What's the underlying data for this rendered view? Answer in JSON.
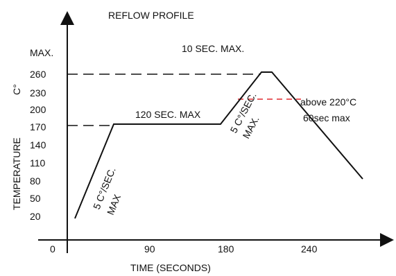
{
  "title": "REFLOW PROFILE",
  "y_axis": {
    "label": "TEMPERATURE",
    "unit": "C°",
    "max_label": "MAX.",
    "ticks": [
      "260",
      "230",
      "200",
      "170",
      "140",
      "110",
      "80",
      "50",
      "20"
    ]
  },
  "x_axis": {
    "label": "TIME (SECONDS)",
    "ticks": [
      "0",
      "90",
      "180",
      "240"
    ]
  },
  "annotations": {
    "peak": "10 SEC. MAX.",
    "soak": "120 SEC. MAX",
    "above_liquidus_line1": "above 220°C",
    "above_liquidus_line2": "60sec max",
    "ramp1_line1": "5 C°/SEC.",
    "ramp1_line2": "MAX",
    "ramp2_line1": "5 C°/SEC.",
    "ramp2_line2": "MAX."
  },
  "colors": {
    "line": "#111111",
    "liquidus": "#e0282e"
  }
}
